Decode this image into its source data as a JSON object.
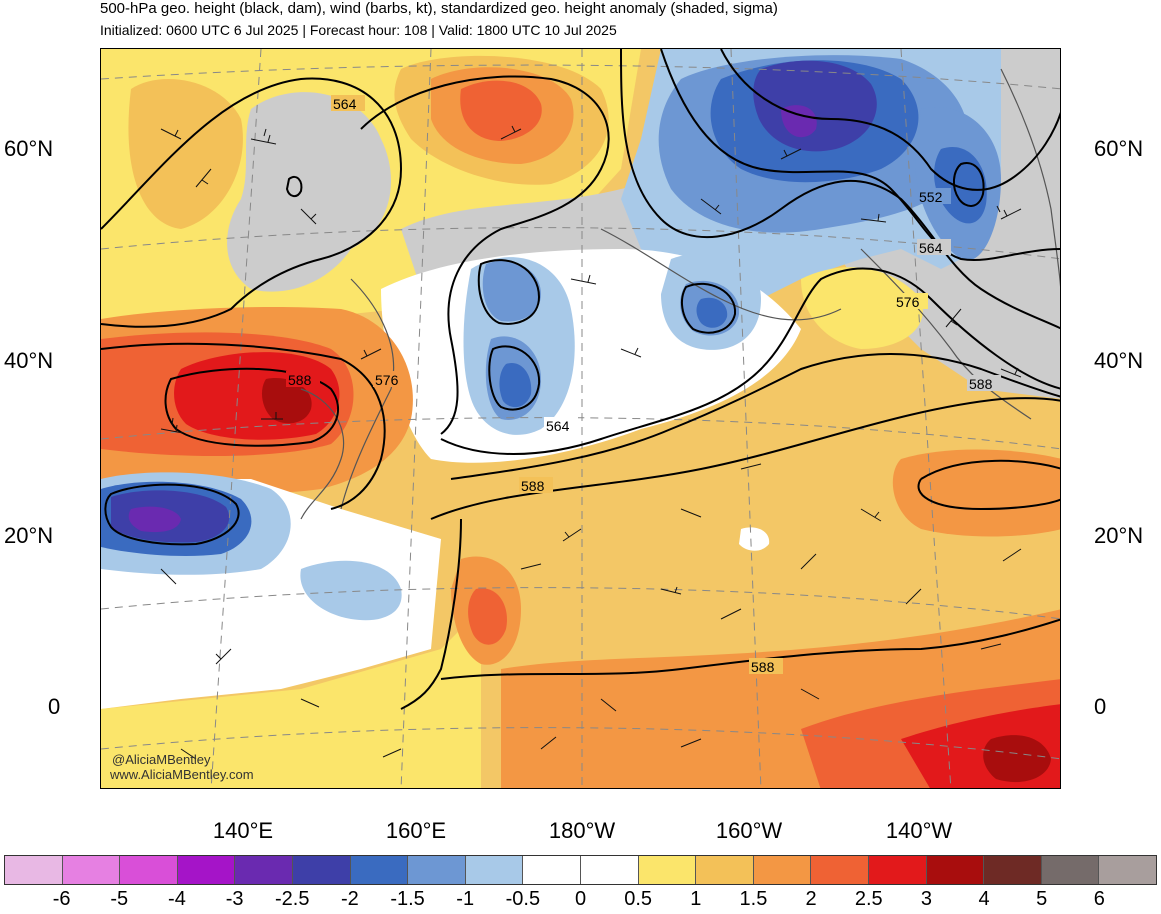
{
  "title": "500-hPa geo. height (black, dam), wind (barbs, kt), standardized geo. height anomaly (shaded, sigma)",
  "subtitle": "Initialized: 0600 UTC 6 Jul 2025 | Forecast hour: 108 | Valid: 1800 UTC 10 Jul 2025",
  "lat_labels": [
    "60°N",
    "40°N",
    "20°N",
    "0"
  ],
  "lon_labels": [
    "140°E",
    "160°E",
    "180°W",
    "160°W",
    "140°W"
  ],
  "contour_labels": [
    "564",
    "552",
    "564",
    "576",
    "588",
    "588",
    "576",
    "564",
    "588",
    "588"
  ],
  "credits": [
    "@AliciaMBentley",
    "www.AliciaMBentley.com"
  ],
  "colorbar": {
    "labels": [
      "-6",
      "-5",
      "-4",
      "-3",
      "-2.5",
      "-2",
      "-1.5",
      "-1",
      "-0.5",
      "0",
      "0.5",
      "1",
      "1.5",
      "2",
      "2.5",
      "3",
      "4",
      "5",
      "6"
    ],
    "colors": [
      "#e8b8e4",
      "#e680e2",
      "#d94fd8",
      "#a514c8",
      "#6a2ab0",
      "#3e3fa8",
      "#3a6bc0",
      "#6d97d3",
      "#a8c9e8",
      "#ffffff",
      "#ffffff",
      "#fbe56b",
      "#f3c158",
      "#f39744",
      "#ef6234",
      "#e2191b",
      "#a80d0d",
      "#6e2a25",
      "#756b6a",
      "#a89e9d"
    ]
  }
}
